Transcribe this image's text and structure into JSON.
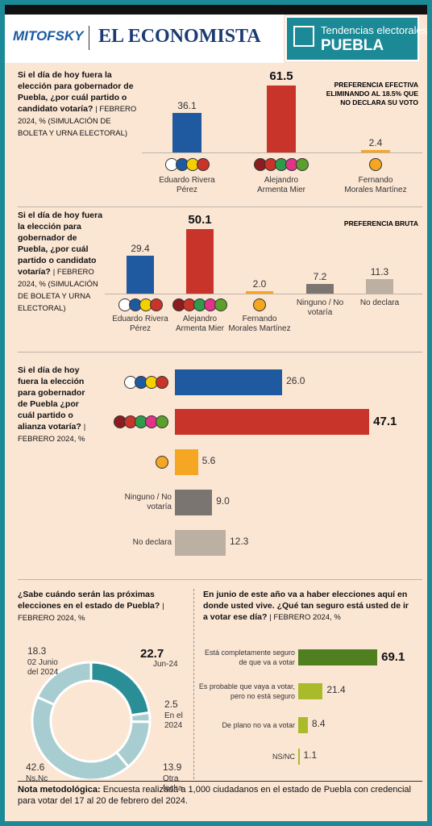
{
  "header": {
    "brand": "MITOFSKY",
    "newspaper": "EL ECONOMISTA",
    "section": "Tendencias electorales",
    "state": "PUEBLA"
  },
  "chart_data": [
    {
      "type": "bar",
      "title": "Si el día de hoy fuera la elección para gobernador de Puebla, ¿por cuál partido o candidato votaría?",
      "subtitle": "| FEBRERO 2024, % (SIMULACIÓN DE BOLETA Y URNA ELECTORAL)",
      "note": "PREFERENCIA EFECTIVA ELIMINANDO AL 18.5% QUE NO DECLARA SU VOTO",
      "categories": [
        "Eduardo Rivera Pérez",
        "Alejandro Armenta Mier",
        "Fernando Morales Martínez"
      ],
      "values": [
        36.1,
        61.5,
        2.4
      ],
      "colors": [
        "#1f5aa0",
        "#c8332a",
        "#f5a623"
      ]
    },
    {
      "type": "bar",
      "title": "Si el día de hoy fuera la elección para gobernador de Puebla, ¿por cuál partido o candidato votaría?",
      "subtitle": "| FEBRERO 2024, % (SIMULACIÓN DE BOLETA Y URNA ELECTORAL)",
      "note": "PREFERENCIA BRUTA",
      "categories": [
        "Eduardo Rivera Pérez",
        "Alejandro Armenta Mier",
        "Fernando Morales Martínez",
        "Ninguno / No votaría",
        "No declara"
      ],
      "values": [
        29.4,
        50.1,
        2.0,
        7.2,
        11.3
      ],
      "value_labels": [
        "29.4",
        "50.1",
        "2.0",
        "7.2",
        "11.3"
      ],
      "colors": [
        "#1f5aa0",
        "#c8332a",
        "#f5a623",
        "#7b7571",
        "#bcb0a3"
      ]
    },
    {
      "type": "hbar",
      "title": "Si el día de hoy fuera la elección para gobernador de Puebla ¿por cuál partido o alianza votaría?",
      "subtitle": "| FEBRERO 2024, %",
      "categories": [
        null,
        null,
        null,
        "Ninguno / No votaría",
        "No declara"
      ],
      "values": [
        26.0,
        47.1,
        5.6,
        9.0,
        12.3
      ],
      "value_labels": [
        "26.0",
        "47.1",
        "5.6",
        "9.0",
        "12.3"
      ],
      "colors": [
        "#1f5aa0",
        "#c8332a",
        "#f5a623",
        "#7b7571",
        "#bcb0a3"
      ]
    },
    {
      "type": "donut",
      "title": "¿Sabe cuándo serán las próximas elecciones en el estado de Puebla?",
      "subtitle": "| FEBRERO 2024, %",
      "categories": [
        "Jun-24",
        "En el 2024",
        "Otra fecha",
        "Ns,Nc",
        "02 Junio del 2024"
      ],
      "values": [
        22.7,
        2.5,
        13.9,
        42.6,
        18.3
      ],
      "colors": [
        "#2a8e97",
        "#a8cdd1",
        "#a8cdd1",
        "#a8cdd1",
        "#a8cdd1"
      ]
    },
    {
      "type": "hbar",
      "title": "En junio de este año va a haber elecciones aquí en donde usted vive. ¿Qué tan seguro está usted de ir a votar ese día?",
      "subtitle": "| FEBRERO 2024, %",
      "categories": [
        "Está completamente seguro de que va a votar",
        "Es probable que vaya a votar, pero no está seguro",
        "De plano no va a votar",
        "NS/NC"
      ],
      "values": [
        69.1,
        21.4,
        8.4,
        1.1
      ],
      "colors": [
        "#4f7f1f",
        "#a9bb2b",
        "#a9bb2b",
        "#a9bb2b"
      ]
    }
  ],
  "footnote": {
    "label": "Nota metodológica:",
    "text": "Encuesta realizada a 1,000 ciudadanos en el estado de Puebla con credencial para votar del 17 al 20 de febrero del 2024."
  }
}
